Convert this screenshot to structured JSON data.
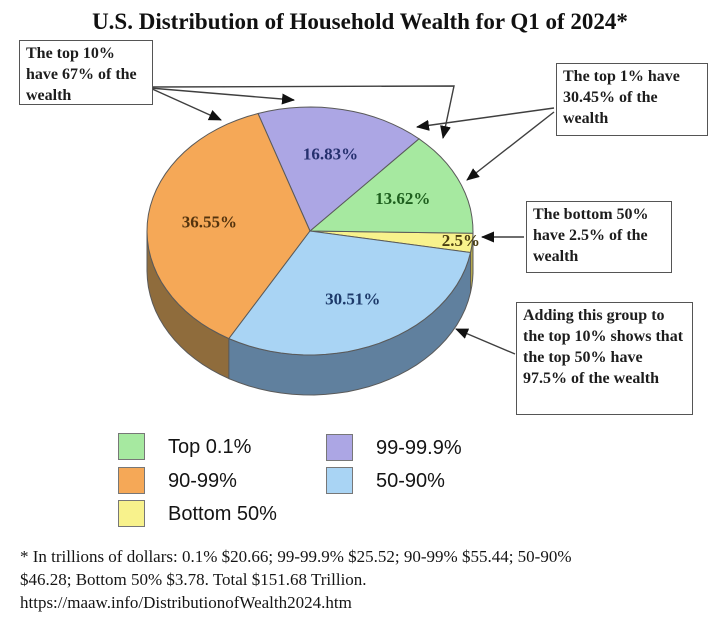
{
  "title": "U.S. Distribution of Household Wealth for Q1 of 2024*",
  "chart_data": {
    "type": "pie",
    "three_d": true,
    "title": "U.S. Distribution of Household Wealth for Q1 of 2024*",
    "start_angle_deg": -10,
    "legend_position": "bottom",
    "total": "Total $151.68 Trillion",
    "slices": [
      {
        "label": "Bottom 50%",
        "value": 2.5,
        "display": "2.5%",
        "trillions_usd": 3.78,
        "color": "#f8f28c",
        "side_color": "#b5a94f",
        "label_color": "#4a3e10",
        "label_r": 0.93
      },
      {
        "label": "Top 0.1%",
        "value": 13.62,
        "display": "13.62%",
        "trillions_usd": 20.66,
        "color": "#a6e9a0",
        "side_color": "#74a871",
        "label_color": "#1e5f1e",
        "label_r": 0.62
      },
      {
        "label": "99-99.9%",
        "value": 16.83,
        "display": "16.83%",
        "trillions_usd": 25.52,
        "color": "#aca6e4",
        "side_color": "#7b74a4",
        "label_color": "#26306e",
        "label_r": 0.62
      },
      {
        "label": "90-99%",
        "value": 36.55,
        "display": "36.55%",
        "trillions_usd": 55.44,
        "color": "#f5a857",
        "side_color": "#8f6c3c",
        "label_color": "#53330e",
        "label_r": 0.62
      },
      {
        "label": "50-90%",
        "value": 30.51,
        "display": "30.51%",
        "trillions_usd": 46.28,
        "color": "#a9d4f4",
        "side_color": "#60809e",
        "label_color": "#1d3a6a",
        "label_r": 0.62
      }
    ]
  },
  "callouts": {
    "top10": "The top 10% have 67% of the wealth",
    "top1": "The top 1% have 30.45% of the wealth",
    "bottom50": "The bottom 50% have 2.5% of the wealth",
    "adding": "Adding this group to the top 10% shows that the top 50% have 97.5% of the wealth"
  },
  "legend": {
    "items": [
      {
        "label": "Top 0.1%",
        "color": "#a6e9a0"
      },
      {
        "label": "90-99%",
        "color": "#f5a857"
      },
      {
        "label": "Bottom 50%",
        "color": "#f8f28c"
      },
      {
        "label": "99-99.9%",
        "color": "#aca6e4"
      },
      {
        "label": "50-90%",
        "color": "#a9d4f4"
      }
    ]
  },
  "footnote": {
    "line1": "* In trillions of dollars: 0.1% $20.66; 99-99.9% $25.52; 90-99% $55.44; 50-90%",
    "line2": "$46.28; Bottom 50% $3.78.  Total $151.68 Trillion.",
    "line3": "https://maaw.info/DistributionofWealth2024.htm"
  }
}
